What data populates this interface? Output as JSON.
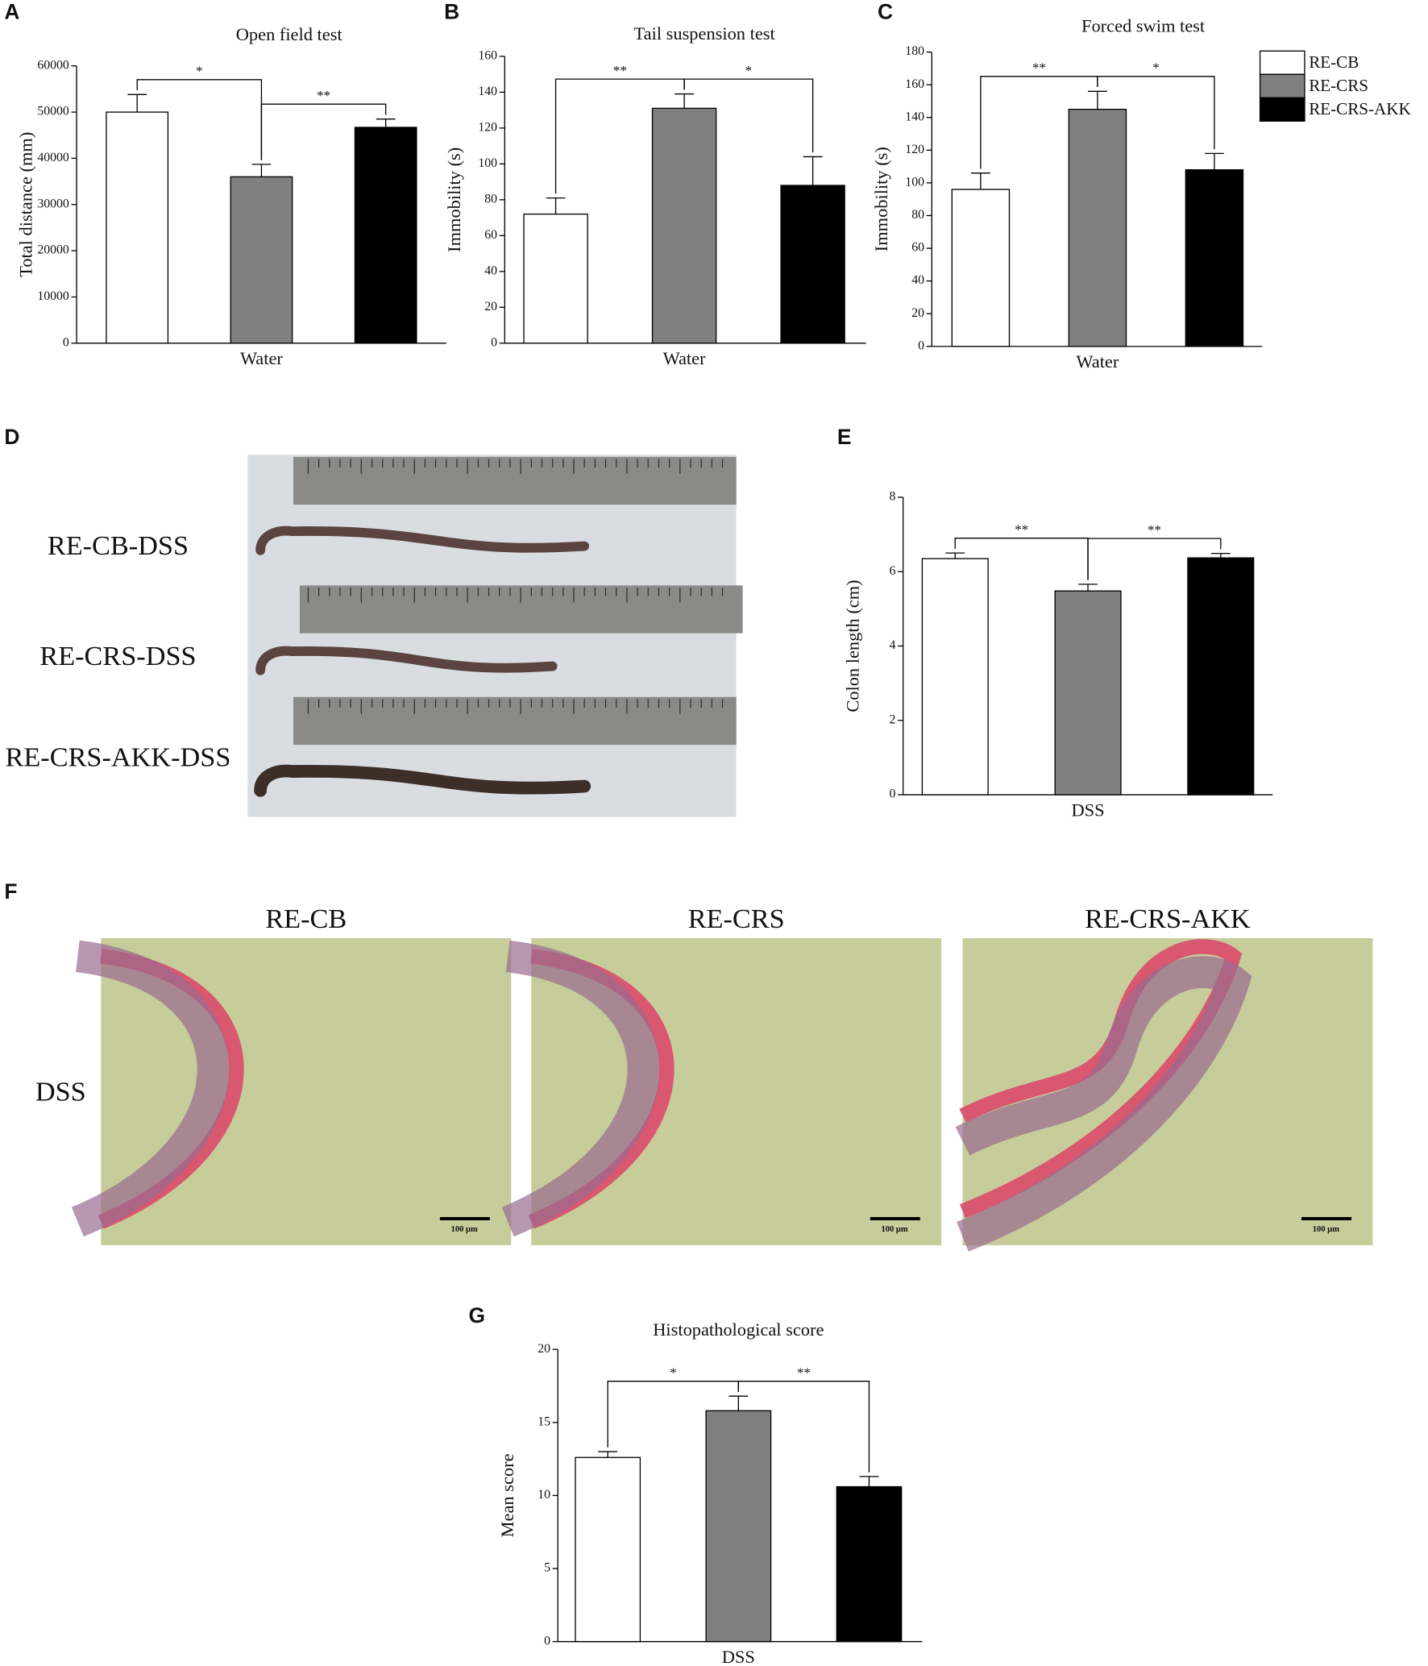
{
  "chart_data": [
    {
      "type": "bar",
      "panel": "A",
      "title": "Open field test",
      "ylabel": "Total distance (mm)",
      "categories": [
        "Water"
      ],
      "series": [
        {
          "color": "#ffffff",
          "values": [
            50000
          ],
          "errors": [
            3800
          ]
        },
        {
          "color": "#808080",
          "values": [
            36000
          ],
          "errors": [
            2700
          ]
        },
        {
          "color": "#000000",
          "values": [
            46700
          ],
          "errors": [
            1800
          ]
        }
      ],
      "ylim": [
        0,
        60000
      ],
      "yticks": [
        0,
        10000,
        20000,
        30000,
        40000,
        50000,
        60000
      ],
      "significance": [
        "*",
        "**"
      ]
    },
    {
      "type": "bar",
      "panel": "B",
      "title": "Tail suspension test",
      "ylabel": "Immobility (s)",
      "categories": [
        "Water"
      ],
      "series": [
        {
          "color": "#ffffff",
          "values": [
            72
          ],
          "errors": [
            9
          ]
        },
        {
          "color": "#808080",
          "values": [
            131
          ],
          "errors": [
            8
          ]
        },
        {
          "color": "#000000",
          "values": [
            88
          ],
          "errors": [
            16
          ]
        }
      ],
      "ylim": [
        0,
        160
      ],
      "yticks": [
        0,
        20,
        40,
        60,
        80,
        100,
        120,
        140,
        160
      ],
      "significance": [
        "**",
        "*"
      ]
    },
    {
      "type": "bar",
      "panel": "C",
      "title": "Forced swim test",
      "ylabel": "Immobility (s)",
      "categories": [
        "Water"
      ],
      "series": [
        {
          "name": "RE-CB",
          "color": "#ffffff",
          "values": [
            96
          ],
          "errors": [
            10
          ]
        },
        {
          "name": "RE-CRS",
          "color": "#808080",
          "values": [
            145
          ],
          "errors": [
            11
          ]
        },
        {
          "name": "RE-CRS-AKK",
          "color": "#000000",
          "values": [
            108
          ],
          "errors": [
            10
          ]
        }
      ],
      "ylim": [
        0,
        180
      ],
      "yticks": [
        0,
        20,
        40,
        60,
        80,
        100,
        120,
        140,
        160,
        180
      ],
      "significance": [
        "**",
        "*"
      ],
      "legend": "upper right"
    },
    {
      "type": "bar",
      "panel": "E",
      "ylabel": "Colon length (cm)",
      "categories": [
        "DSS"
      ],
      "series": [
        {
          "color": "#ffffff",
          "values": [
            6.35
          ],
          "errors": [
            0.15
          ]
        },
        {
          "color": "#808080",
          "values": [
            5.48
          ],
          "errors": [
            0.18
          ]
        },
        {
          "color": "#000000",
          "values": [
            6.37
          ],
          "errors": [
            0.12
          ]
        }
      ],
      "ylim": [
        0,
        8
      ],
      "yticks": [
        0,
        2,
        4,
        6,
        8
      ],
      "significance": [
        "**",
        "**"
      ]
    },
    {
      "type": "bar",
      "panel": "G",
      "title": "Histopathological score",
      "ylabel": "Mean score",
      "categories": [
        "DSS"
      ],
      "series": [
        {
          "color": "#ffffff",
          "values": [
            12.6
          ],
          "errors": [
            0.4
          ]
        },
        {
          "color": "#808080",
          "values": [
            15.8
          ],
          "errors": [
            1.0
          ]
        },
        {
          "color": "#000000",
          "values": [
            10.6
          ],
          "errors": [
            0.7
          ]
        }
      ],
      "ylim": [
        0,
        20
      ],
      "yticks": [
        0,
        5,
        10,
        15,
        20
      ],
      "significance": [
        "*",
        "**"
      ]
    }
  ],
  "photo_panels": [
    {
      "panel": "D",
      "labels": [
        "RE-CB-DSS",
        "RE-CRS-DSS",
        "RE-CRS-AKK-DSS"
      ]
    },
    {
      "panel": "F",
      "columns": [
        "RE-CB",
        "RE-CRS",
        "RE-CRS-AKK"
      ],
      "row": "DSS",
      "scale_bar": "100 μm"
    }
  ]
}
